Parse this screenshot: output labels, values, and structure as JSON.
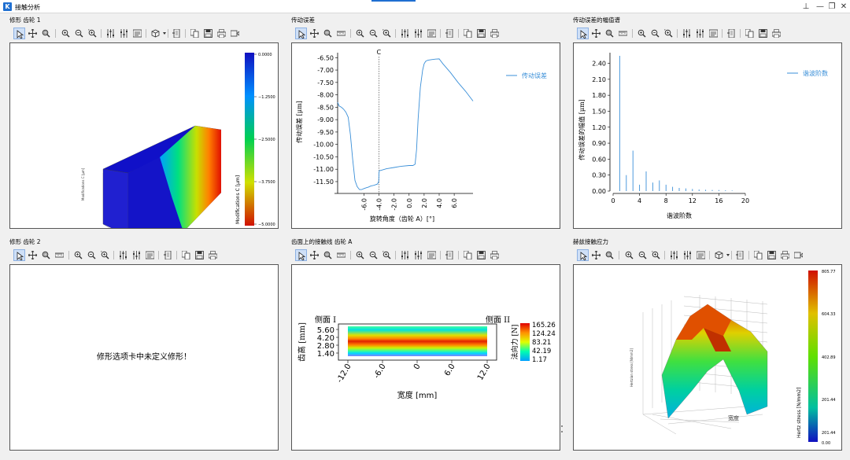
{
  "window": {
    "title": "接触分析",
    "icon_letter": "K",
    "buttons": {
      "pin": "⊥",
      "minimize": "—",
      "restore": "❐",
      "close": "✕"
    }
  },
  "panels": {
    "p1": {
      "title": "修形 齿轮 1",
      "colorbar_ticks": [
        "0.0000",
        "−1.2500",
        "−2.5000",
        "−3.7500",
        "−5.0000"
      ],
      "colorbar_label": "Modifications C [μm]",
      "zaxis_label": "Modifications C [μm]"
    },
    "p2": {
      "title": "传动误差",
      "xlabel": "旋转角度（齿轮 A）[°]",
      "ylabel": "传动误差 [μm]",
      "legend": "传动误差",
      "marker": "C",
      "marker_x": -4.0,
      "chart_data": {
        "type": "line",
        "xlabel": "旋转角度（齿轮 A）[°]",
        "ylabel": "传动误差 [μm]",
        "xlim": [
          -9.5,
          8.5
        ],
        "ylim": [
          -11.85,
          -6.3
        ],
        "xticks": [
          -6.0,
          -4.0,
          -2.0,
          0.0,
          2.0,
          4.0,
          6.0
        ],
        "yticks": [
          -6.5,
          -7.0,
          -7.5,
          -8.0,
          -8.5,
          -9.0,
          -9.5,
          -10.0,
          -10.5,
          -11.0,
          -11.5
        ],
        "series": [
          {
            "name": "传动误差",
            "x": [
              -9.5,
              -9.3,
              -9.0,
              -8.7,
              -8.4,
              -8.1,
              -7.8,
              -7.5,
              -7.2,
              -6.9,
              -6.6,
              -6.3,
              -6.0,
              -5.7,
              -5.4,
              -5.1,
              -4.8,
              -4.5,
              -4.2,
              -4.05,
              -4.0,
              -3.95,
              -3.8,
              -3.0,
              -2.0,
              -1.0,
              0.0,
              0.5,
              0.8,
              1.0,
              1.2,
              1.5,
              1.8,
              2.0,
              2.2,
              2.5,
              3.0,
              3.5,
              4.0,
              4.5,
              5.5,
              6.5,
              7.5,
              8.5
            ],
            "y": [
              -8.3,
              -8.45,
              -8.5,
              -8.58,
              -8.7,
              -8.9,
              -9.6,
              -10.6,
              -11.45,
              -11.7,
              -11.82,
              -11.82,
              -11.78,
              -11.75,
              -11.72,
              -11.68,
              -11.66,
              -11.63,
              -11.6,
              -11.5,
              -11.15,
              -11.05,
              -11.05,
              -10.98,
              -10.93,
              -10.88,
              -10.85,
              -10.85,
              -10.8,
              -10.2,
              -9.0,
              -7.7,
              -7.0,
              -6.75,
              -6.65,
              -6.6,
              -6.58,
              -6.56,
              -6.55,
              -6.75,
              -7.1,
              -7.5,
              -7.85,
              -8.25
            ]
          }
        ]
      }
    },
    "p3": {
      "title": "传动误差的幅值谱",
      "xlabel": "谐波阶数",
      "ylabel": "传动误差的幅值 [μm]",
      "legend": "谐波阶数",
      "chart_data": {
        "type": "bar",
        "xlabel": "谐波阶数",
        "ylabel": "传动误差的幅值 [μm]",
        "xlim": [
          0,
          20
        ],
        "ylim": [
          0,
          2.6
        ],
        "xticks": [
          0,
          4,
          8,
          12,
          16,
          20
        ],
        "yticks": [
          0,
          0.3,
          0.6,
          0.9,
          1.2,
          1.5,
          1.8,
          2.1,
          2.4
        ],
        "series": [
          {
            "name": "谐波阶数",
            "x": [
              1,
              2,
              3,
              4,
              5,
              6,
              7,
              8,
              9,
              10,
              11,
              12,
              13,
              14,
              15,
              16,
              17,
              18
            ],
            "values": [
              2.54,
              0.3,
              0.76,
              0.12,
              0.37,
              0.16,
              0.2,
              0.12,
              0.08,
              0.06,
              0.05,
              0.04,
              0.03,
              0.025,
              0.02,
              0.02,
              0.015,
              0.01
            ]
          }
        ]
      }
    },
    "p4": {
      "title": "修形 齿轮 2",
      "message": "修形选项卡中未定义修形！"
    },
    "p5": {
      "title": "齿面上的接触线 齿轮 A",
      "side_left": "侧面 I",
      "side_right": "侧面 II",
      "xlabel": "宽度 [mm]",
      "ylabel": "齿高 [mm]",
      "xticks": [
        "-12.0",
        "-6.0",
        "0",
        "6.0",
        "12.0"
      ],
      "yticks": [
        "5.60",
        "4.20",
        "2.80",
        "1.40"
      ],
      "colorbar_ticks": [
        "165.26",
        "124.24",
        "83.21",
        "42.19",
        "1.17"
      ],
      "colorbar_label": "法向力 [N]"
    },
    "p6": {
      "title": "赫兹接触应力",
      "colorbar_ticks": [
        "805.77",
        "604.33",
        "402.89",
        "201.44",
        "201.44",
        "0.00"
      ],
      "colorbar_label": "Hertz stress [N/mm2]",
      "zaxis_label": "Hertzian stress [N/mm2]",
      "axis_text": "宽度"
    }
  }
}
